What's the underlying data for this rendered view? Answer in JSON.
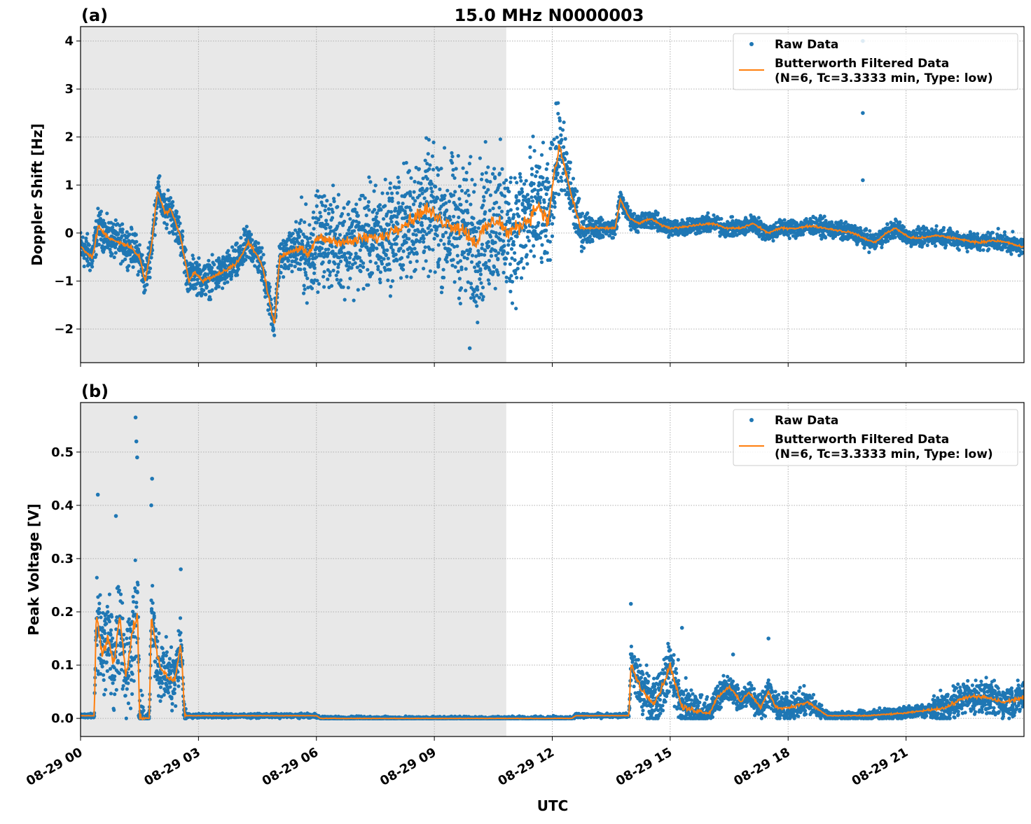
{
  "figure_title": "15.0 MHz N0000003",
  "x_label": "UTC",
  "x_unit": "hours since 08-29 00",
  "x_range": [
    0,
    24
  ],
  "x_ticks": [
    0,
    3,
    6,
    9,
    12,
    15,
    18,
    21
  ],
  "x_tick_labels": [
    "08-29 00",
    "08-29 03",
    "08-29 06",
    "08-29 09",
    "08-29 12",
    "08-29 15",
    "08-29 18",
    "08-29 21"
  ],
  "shaded_interval_hours": [
    0,
    10.83
  ],
  "colors": {
    "raw": "#1f77b4",
    "filtered": "#ff7f0e",
    "shade": "#e8e8e8",
    "grid": "#b0b0b0"
  },
  "legend": {
    "raw": "Raw Data",
    "filtered_line1": "Butterworth Filtered Data",
    "filtered_line2": "(N=6, Tc=3.3333 min, Type: low)",
    "placement": "top-right"
  },
  "chart_data": [
    {
      "type": "scatter",
      "panel_label": "(a)",
      "ylabel": "Doppler Shift [Hz]",
      "ylim": [
        -2.7,
        4.3
      ],
      "y_ticks": [
        -2,
        -1,
        0,
        1,
        2,
        3,
        4
      ],
      "y_tick_labels": [
        "−2",
        "−1",
        "0",
        "1",
        "2",
        "3",
        "4"
      ],
      "grid": true,
      "filtered": [
        [
          0,
          -0.3
        ],
        [
          0.3,
          -0.5
        ],
        [
          0.45,
          0.15
        ],
        [
          0.7,
          -0.1
        ],
        [
          1.0,
          -0.2
        ],
        [
          1.3,
          -0.3
        ],
        [
          1.5,
          -0.5
        ],
        [
          1.64,
          -1.0
        ],
        [
          1.8,
          -0.3
        ],
        [
          1.96,
          0.9
        ],
        [
          2.15,
          0.4
        ],
        [
          2.3,
          0.5
        ],
        [
          2.55,
          -0.1
        ],
        [
          2.76,
          -1.0
        ],
        [
          2.9,
          -0.8
        ],
        [
          3.1,
          -1.0
        ],
        [
          3.4,
          -0.9
        ],
        [
          3.65,
          -0.8
        ],
        [
          4.0,
          -0.6
        ],
        [
          4.27,
          -0.2
        ],
        [
          4.45,
          -0.4
        ],
        [
          4.63,
          -0.7
        ],
        [
          4.93,
          -1.9
        ],
        [
          5.07,
          -0.5
        ],
        [
          5.3,
          -0.4
        ],
        [
          5.6,
          -0.3
        ],
        [
          5.8,
          -0.5
        ],
        [
          6.0,
          -0.1
        ],
        [
          6.4,
          -0.15
        ],
        [
          6.85,
          -0.2
        ],
        [
          7.2,
          -0.1
        ],
        [
          7.65,
          -0.1
        ],
        [
          8.0,
          0.1
        ],
        [
          8.27,
          0.2
        ],
        [
          8.8,
          0.5
        ],
        [
          9.1,
          0.3
        ],
        [
          9.34,
          0.2
        ],
        [
          9.7,
          0.1
        ],
        [
          10.05,
          -0.2
        ],
        [
          10.3,
          0.1
        ],
        [
          10.6,
          0.3
        ],
        [
          10.85,
          0.0
        ],
        [
          11.1,
          0.1
        ],
        [
          11.4,
          0.3
        ],
        [
          11.65,
          0.6
        ],
        [
          11.9,
          0.2
        ],
        [
          12.0,
          1.0
        ],
        [
          12.19,
          1.8
        ],
        [
          12.45,
          0.9
        ],
        [
          12.72,
          0.1
        ],
        [
          13.0,
          0.1
        ],
        [
          13.26,
          0.1
        ],
        [
          13.6,
          0.1
        ],
        [
          13.73,
          0.7
        ],
        [
          13.97,
          0.3
        ],
        [
          14.2,
          0.2
        ],
        [
          14.5,
          0.3
        ],
        [
          14.8,
          0.15
        ],
        [
          15.03,
          0.1
        ],
        [
          15.5,
          0.15
        ],
        [
          16.1,
          0.2
        ],
        [
          16.4,
          0.1
        ],
        [
          16.8,
          0.1
        ],
        [
          17.1,
          0.2
        ],
        [
          17.5,
          0.0
        ],
        [
          17.8,
          0.1
        ],
        [
          18.2,
          0.1
        ],
        [
          18.6,
          0.15
        ],
        [
          18.95,
          0.1
        ],
        [
          19.3,
          0.05
        ],
        [
          19.66,
          0.0
        ],
        [
          19.9,
          -0.1
        ],
        [
          20.2,
          -0.2
        ],
        [
          20.5,
          0.0
        ],
        [
          20.73,
          0.1
        ],
        [
          21.1,
          -0.1
        ],
        [
          21.44,
          -0.1
        ],
        [
          21.8,
          -0.05
        ],
        [
          22.15,
          -0.1
        ],
        [
          22.5,
          -0.15
        ],
        [
          22.86,
          -0.2
        ],
        [
          23.2,
          -0.15
        ],
        [
          23.58,
          -0.2
        ],
        [
          24,
          -0.3
        ]
      ],
      "raw_spread": [
        [
          0,
          0.3
        ],
        [
          5.4,
          0.3
        ],
        [
          5.6,
          0.7
        ],
        [
          8,
          0.9
        ],
        [
          10,
          1.2
        ],
        [
          11.5,
          1.1
        ],
        [
          12.2,
          0.7
        ],
        [
          12.8,
          0.3
        ],
        [
          13.2,
          0.15
        ],
        [
          24,
          0.15
        ]
      ],
      "raw_outliers": [
        [
          19.9,
          4.0
        ],
        [
          19.9,
          2.5
        ],
        [
          19.9,
          1.1
        ],
        [
          9.9,
          -2.4
        ],
        [
          12.1,
          2.7
        ]
      ]
    },
    {
      "type": "scatter",
      "panel_label": "(b)",
      "ylabel": "Peak Voltage [V]",
      "ylim": [
        -0.034,
        0.593
      ],
      "y_ticks": [
        0.0,
        0.1,
        0.2,
        0.3,
        0.4,
        0.5
      ],
      "y_tick_labels": [
        "0.0",
        "0.1",
        "0.2",
        "0.3",
        "0.4",
        "0.5"
      ],
      "grid": true,
      "filtered": [
        [
          0,
          0.005
        ],
        [
          0.35,
          0.005
        ],
        [
          0.4,
          0.2
        ],
        [
          0.55,
          0.12
        ],
        [
          0.7,
          0.15
        ],
        [
          0.85,
          0.1
        ],
        [
          1.0,
          0.2
        ],
        [
          1.15,
          0.08
        ],
        [
          1.3,
          0.15
        ],
        [
          1.45,
          0.2
        ],
        [
          1.5,
          0.0
        ],
        [
          1.75,
          0.0
        ],
        [
          1.8,
          0.19
        ],
        [
          2.0,
          0.1
        ],
        [
          2.2,
          0.08
        ],
        [
          2.4,
          0.07
        ],
        [
          2.55,
          0.14
        ],
        [
          2.65,
          0.005
        ],
        [
          6.0,
          0.005
        ],
        [
          6.1,
          0.0
        ],
        [
          12.5,
          0.0
        ],
        [
          12.6,
          0.005
        ],
        [
          13.95,
          0.005
        ],
        [
          14.0,
          0.1
        ],
        [
          14.3,
          0.05
        ],
        [
          14.6,
          0.03
        ],
        [
          14.8,
          0.06
        ],
        [
          15.0,
          0.1
        ],
        [
          15.3,
          0.02
        ],
        [
          16.0,
          0.01
        ],
        [
          16.2,
          0.04
        ],
        [
          16.5,
          0.06
        ],
        [
          16.8,
          0.03
        ],
        [
          17.0,
          0.05
        ],
        [
          17.3,
          0.02
        ],
        [
          17.5,
          0.05
        ],
        [
          17.7,
          0.02
        ],
        [
          18.0,
          0.02
        ],
        [
          18.5,
          0.03
        ],
        [
          19.0,
          0.005
        ],
        [
          20.0,
          0.005
        ],
        [
          21.0,
          0.01
        ],
        [
          22.0,
          0.02
        ],
        [
          22.5,
          0.04
        ],
        [
          23.0,
          0.04
        ],
        [
          23.5,
          0.03
        ],
        [
          24.0,
          0.04
        ]
      ],
      "raw_spread": [
        [
          0,
          0.003
        ],
        [
          0.35,
          0.003
        ],
        [
          0.4,
          0.08
        ],
        [
          1.5,
          0.08
        ],
        [
          1.6,
          0.01
        ],
        [
          1.75,
          0.01
        ],
        [
          1.8,
          0.05
        ],
        [
          2.6,
          0.05
        ],
        [
          2.7,
          0.003
        ],
        [
          13.95,
          0.003
        ],
        [
          14.0,
          0.04
        ],
        [
          15.4,
          0.04
        ],
        [
          16.0,
          0.02
        ],
        [
          18.5,
          0.02
        ],
        [
          19.0,
          0.006
        ],
        [
          21.5,
          0.01
        ],
        [
          22.0,
          0.025
        ],
        [
          24.0,
          0.025
        ]
      ],
      "raw_outliers": [
        [
          1.4,
          0.565
        ],
        [
          1.42,
          0.52
        ],
        [
          1.44,
          0.49
        ],
        [
          0.44,
          0.42
        ],
        [
          1.82,
          0.45
        ],
        [
          1.8,
          0.4
        ],
        [
          2.55,
          0.28
        ],
        [
          0.9,
          0.38
        ],
        [
          14.0,
          0.215
        ],
        [
          15.3,
          0.17
        ],
        [
          17.5,
          0.15
        ],
        [
          16.6,
          0.12
        ]
      ]
    }
  ]
}
